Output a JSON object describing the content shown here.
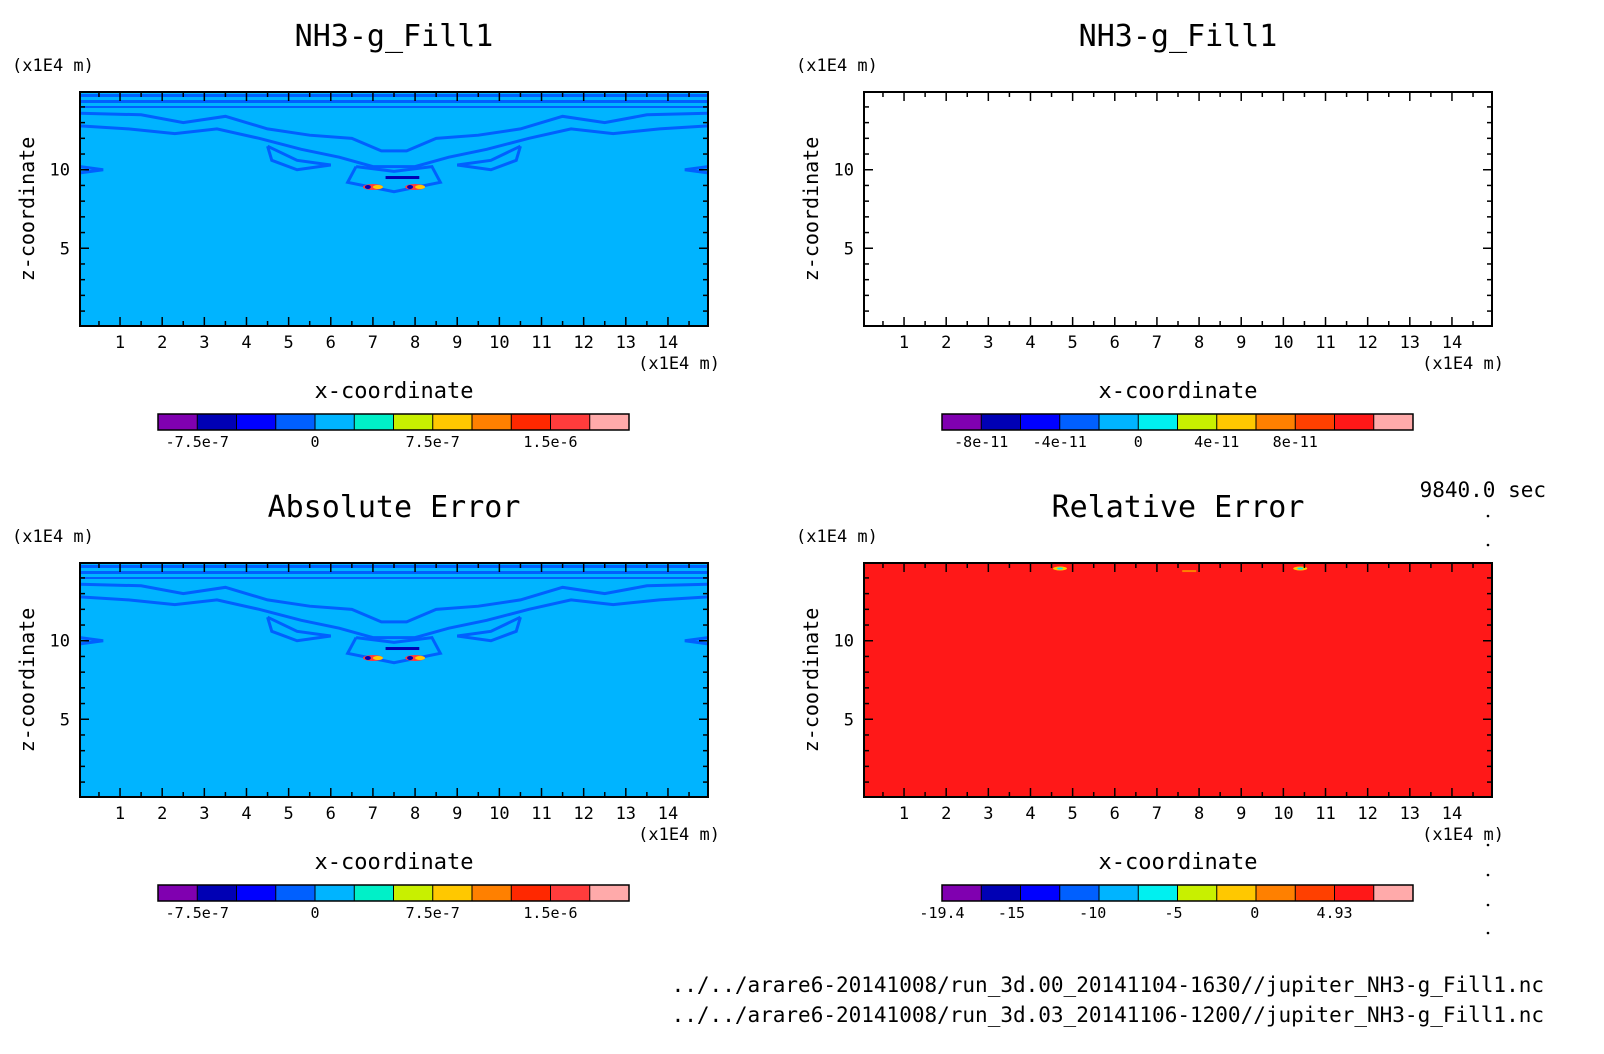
{
  "time_label": "9840.0 sec",
  "file_paths": [
    "../../arare6-20141008/run_3d.00_20141104-1630//jupiter_NH3-g_Fill1.nc",
    "../../arare6-20141008/run_3d.03_20141106-1200//jupiter_NH3-g_Fill1.nc"
  ],
  "colors": {
    "background_blue": "#00b4ff",
    "contour_blue": "#0060ff",
    "relative_error_red": "#ff1818"
  },
  "chart_data": [
    {
      "type": "heatmap",
      "title": "NH3-g_Fill1",
      "xlabel": "x-coordinate",
      "ylabel": "z-coordinate",
      "x_unit": "(x1E4 m)",
      "y_unit": "(x1E4 m)",
      "xlim": [
        0.05,
        14.95
      ],
      "ylim": [
        0.05,
        14.95
      ],
      "x_ticks": [
        1,
        2,
        3,
        4,
        5,
        6,
        7,
        8,
        9,
        10,
        11,
        12,
        13,
        14
      ],
      "y_ticks": [
        5,
        10
      ],
      "fill": "field",
      "colorbar": {
        "colors": [
          "#8000b0",
          "#0000b4",
          "#0000ff",
          "#0060ff",
          "#00b4ff",
          "#00f0c8",
          "#c8f000",
          "#ffc800",
          "#ff8000",
          "#ff2800",
          "#ff3c3c",
          "#ffaaaa"
        ],
        "tick_labels": [
          "-7.5e-7",
          "0",
          "7.5e-7",
          "1.5e-6"
        ],
        "tick_positions": [
          1,
          4,
          7,
          10
        ]
      }
    },
    {
      "type": "heatmap",
      "title": "NH3-g_Fill1",
      "xlabel": "x-coordinate",
      "ylabel": "z-coordinate",
      "x_unit": "(x1E4 m)",
      "y_unit": "(x1E4 m)",
      "xlim": [
        0.05,
        14.95
      ],
      "ylim": [
        0.05,
        14.95
      ],
      "x_ticks": [
        1,
        2,
        3,
        4,
        5,
        6,
        7,
        8,
        9,
        10,
        11,
        12,
        13,
        14
      ],
      "y_ticks": [
        5,
        10
      ],
      "fill": "empty",
      "colorbar": {
        "colors": [
          "#8000b0",
          "#0000b4",
          "#0000ff",
          "#0060ff",
          "#00b4ff",
          "#00f0f0",
          "#c8f000",
          "#ffc800",
          "#ff8000",
          "#ff4000",
          "#ff1818",
          "#ffaaaa"
        ],
        "tick_labels": [
          "-8e-11",
          "-4e-11",
          "0",
          "4e-11",
          "8e-11"
        ],
        "tick_positions": [
          1,
          3,
          5,
          7,
          9
        ]
      }
    },
    {
      "type": "heatmap",
      "title": "Absolute Error",
      "xlabel": "x-coordinate",
      "ylabel": "z-coordinate",
      "x_unit": "(x1E4 m)",
      "y_unit": "(x1E4 m)",
      "xlim": [
        0.05,
        14.95
      ],
      "ylim": [
        0.05,
        14.95
      ],
      "x_ticks": [
        1,
        2,
        3,
        4,
        5,
        6,
        7,
        8,
        9,
        10,
        11,
        12,
        13,
        14
      ],
      "y_ticks": [
        5,
        10
      ],
      "fill": "field",
      "colorbar": {
        "colors": [
          "#8000b0",
          "#0000b4",
          "#0000ff",
          "#0060ff",
          "#00b4ff",
          "#00f0c8",
          "#c8f000",
          "#ffc800",
          "#ff8000",
          "#ff2800",
          "#ff3c3c",
          "#ffaaaa"
        ],
        "tick_labels": [
          "-7.5e-7",
          "0",
          "7.5e-7",
          "1.5e-6"
        ],
        "tick_positions": [
          1,
          4,
          7,
          10
        ]
      }
    },
    {
      "type": "heatmap",
      "title": "Relative Error",
      "xlabel": "x-coordinate",
      "ylabel": "z-coordinate",
      "x_unit": "(x1E4 m)",
      "y_unit": "(x1E4 m)",
      "xlim": [
        0.05,
        14.95
      ],
      "ylim": [
        0.05,
        14.95
      ],
      "x_ticks": [
        1,
        2,
        3,
        4,
        5,
        6,
        7,
        8,
        9,
        10,
        11,
        12,
        13,
        14
      ],
      "y_ticks": [
        5,
        10
      ],
      "fill": "red",
      "colorbar": {
        "colors": [
          "#8000b0",
          "#0000b4",
          "#0000ff",
          "#0060ff",
          "#00b4ff",
          "#00f0f0",
          "#c8f000",
          "#ffc800",
          "#ff8000",
          "#ff4000",
          "#ff1818",
          "#ffaaaa"
        ],
        "tick_labels": [
          "-19.4",
          "-15",
          "-10",
          "-5",
          "0",
          "4.93"
        ],
        "tick_positions": [
          0,
          1.77,
          3.84,
          5.9,
          7.97,
          10
        ]
      }
    }
  ]
}
